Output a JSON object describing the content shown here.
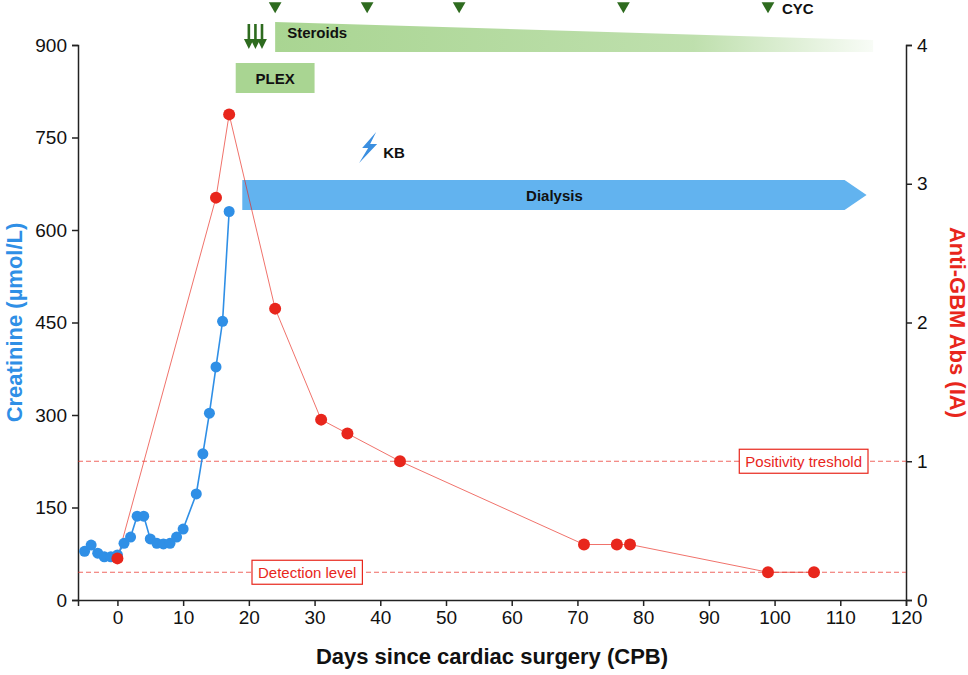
{
  "chart_data": {
    "type": "line",
    "x_label": "Days since cardiac surgery (CPB)",
    "y_label": "Creatinine (µmol/L)",
    "y2_label": "Anti-GBM Abs (IA)",
    "xlim": [
      -6,
      120
    ],
    "xticks": [
      0,
      10,
      20,
      30,
      40,
      50,
      60,
      70,
      80,
      90,
      100,
      110,
      120
    ],
    "ylim": [
      0,
      900
    ],
    "yticks": [
      0,
      150,
      300,
      450,
      600,
      750,
      900
    ],
    "y2lim": [
      0,
      4
    ],
    "y2ticks": [
      0,
      1,
      2,
      3,
      4
    ],
    "grid": false,
    "series": [
      {
        "color": "#2f8fe6",
        "marker": "circle",
        "line_style": "solid",
        "x": [
          -5,
          -4,
          -3,
          -2,
          -1,
          0,
          1,
          2,
          3,
          4,
          5,
          6,
          7,
          8,
          9,
          10,
          12,
          13,
          14,
          15,
          16,
          17
        ],
        "values": [
          79,
          89,
          76,
          70,
          70,
          73,
          92,
          102,
          136,
          136,
          99,
          92,
          91,
          92,
          102,
          115,
          172,
          237,
          303,
          378,
          452,
          630
        ]
      },
      {
        "color": "#e8261c",
        "axis": "y2",
        "marker": "circle",
        "line_style": "solid",
        "x": [
          0,
          15,
          17,
          24,
          31,
          35,
          43,
          71,
          76,
          78,
          99,
          106
        ],
        "values": [
          0.3,
          2.9,
          3.5,
          2.1,
          1.3,
          1.2,
          1.0,
          0.4,
          0.4,
          0.4,
          0.2,
          0.2
        ]
      }
    ],
    "reference_lines": [
      {
        "label": "Positivity treshold",
        "value": 1.0,
        "axis": "y2",
        "color": "#e8261c"
      },
      {
        "label": "Detection level",
        "value": 0.2,
        "axis": "y2",
        "color": "#e8261c"
      }
    ],
    "plex": {
      "label": "PLEX",
      "start": 18,
      "end": 30,
      "color": "#a9d592"
    },
    "steroids": {
      "label": "Steroids",
      "start": 24,
      "end": 115,
      "color": "#a9d592"
    },
    "dialysis": {
      "label": "Dialysis",
      "start": 19,
      "end": 114,
      "color": "#62b3ef"
    },
    "steroid_pulses": {
      "color": "#2e6b1f",
      "days": [
        20,
        21,
        22
      ]
    },
    "cyc_doses": {
      "label": "CYC",
      "color": "#2e6b1f",
      "days": [
        24,
        38,
        52,
        77,
        99
      ]
    },
    "biopsy": {
      "label": "KB",
      "color": "#3b8fe0",
      "day": 38
    }
  }
}
